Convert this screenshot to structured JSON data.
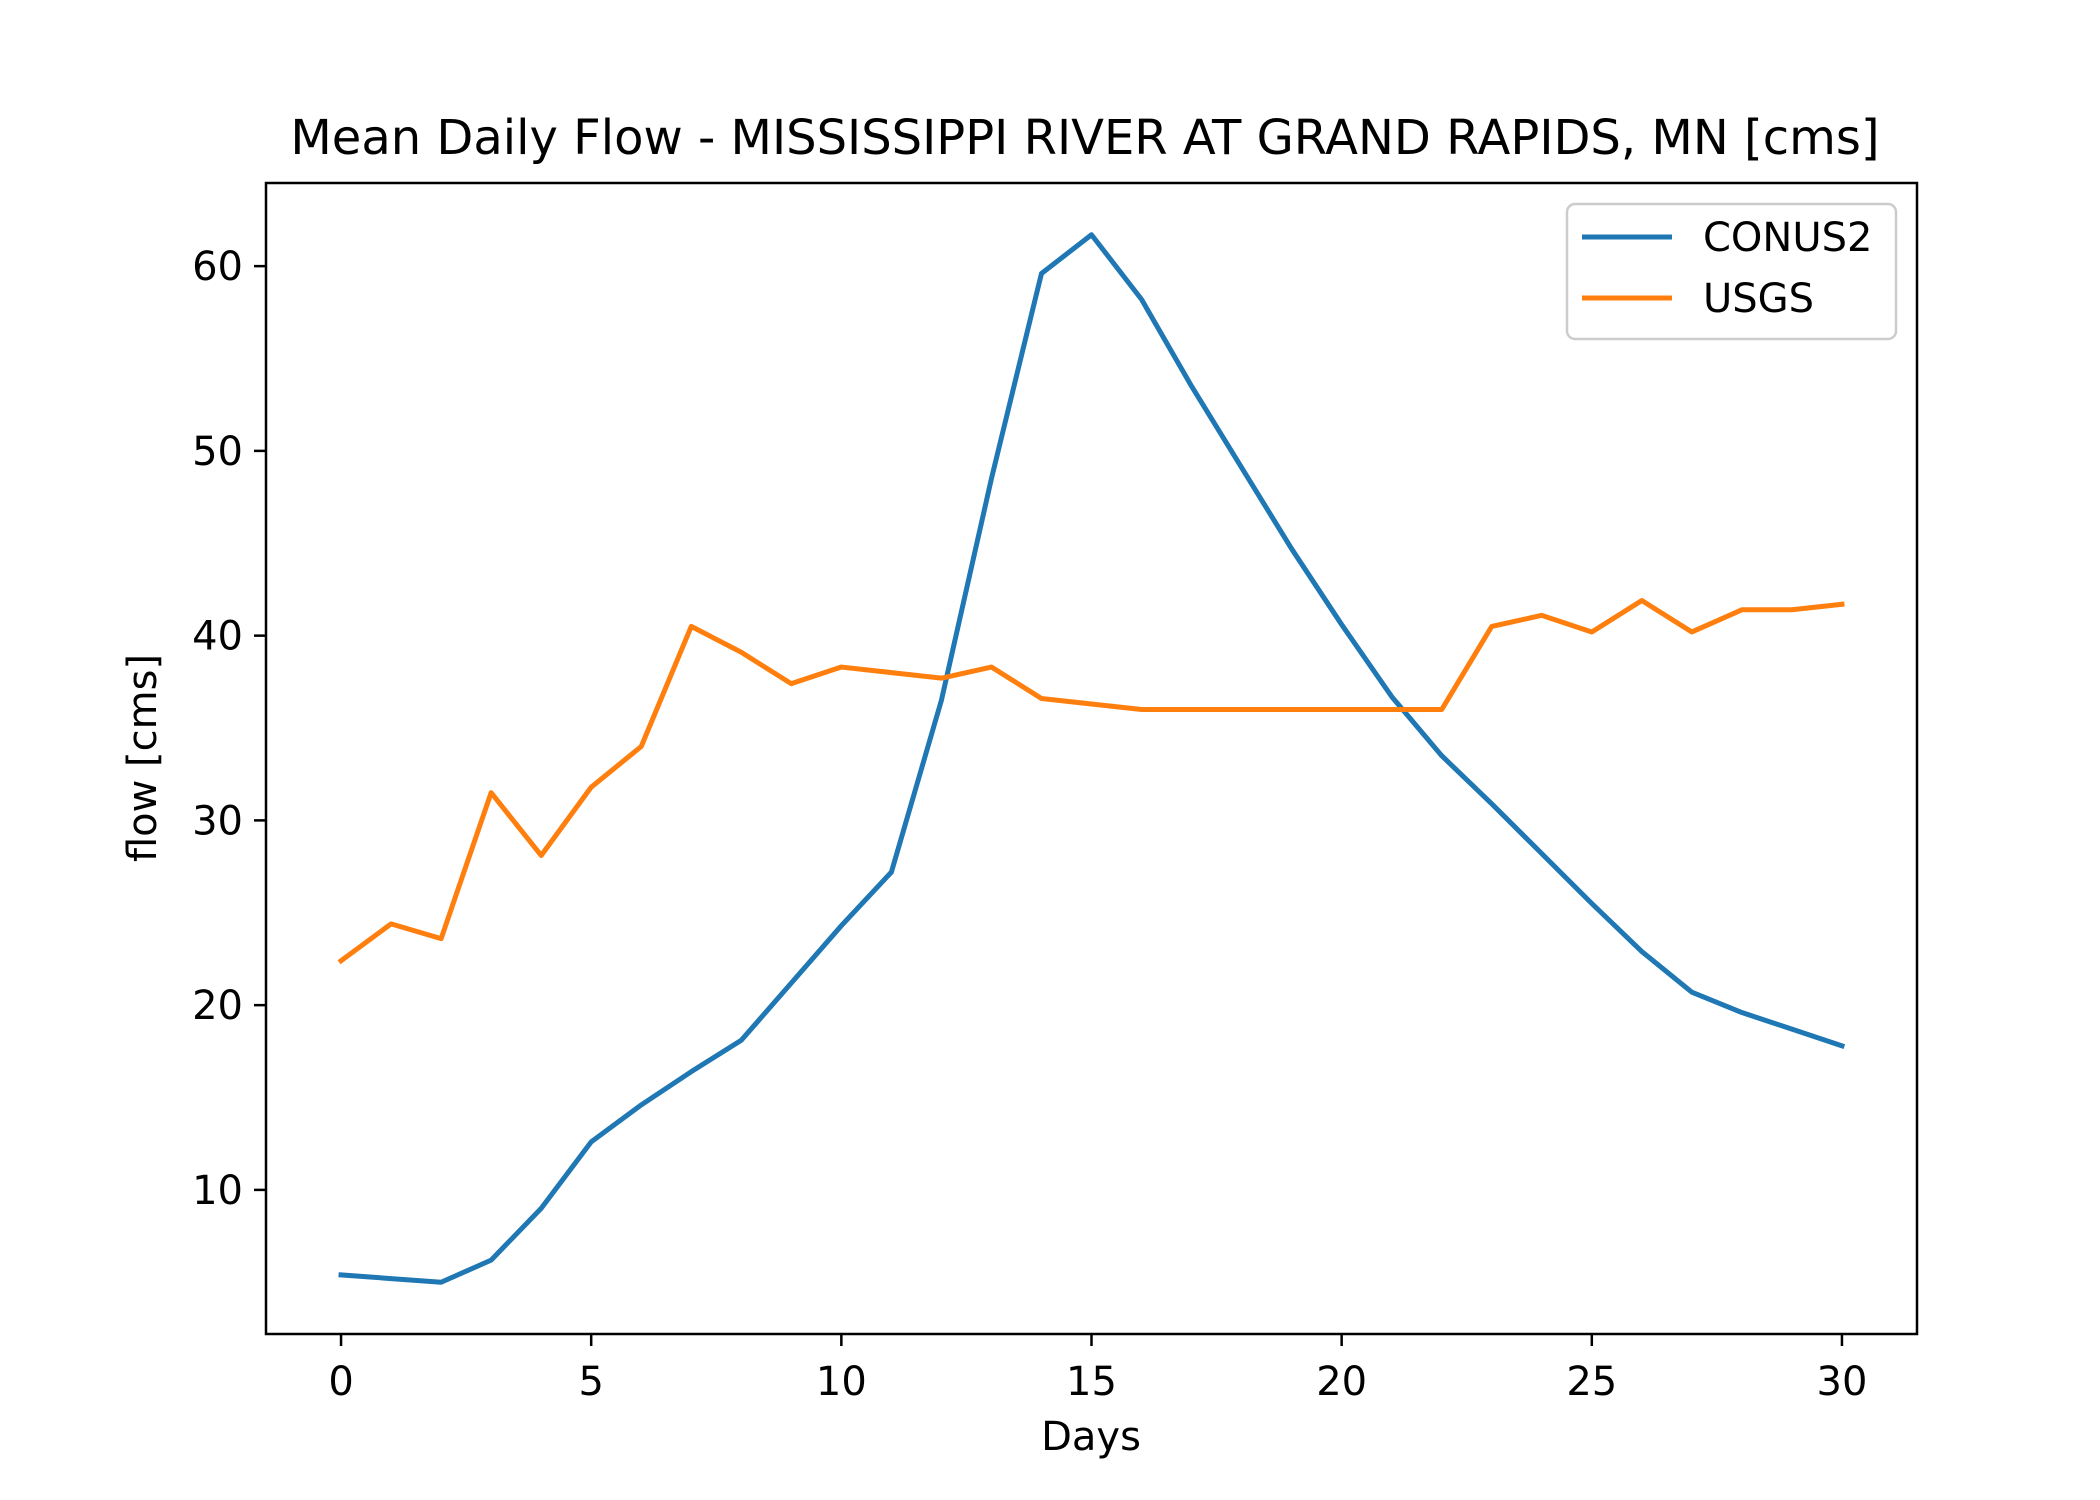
{
  "chart_data": {
    "type": "line",
    "title": "Mean Daily Flow - MISSISSIPPI RIVER AT GRAND RAPIDS, MN [cms]",
    "xlabel": "Days",
    "ylabel": "flow [cms]",
    "xlim": [
      -1.5,
      31.5
    ],
    "ylim": [
      2.2,
      64.5
    ],
    "xticks": [
      0,
      5,
      10,
      15,
      20,
      25,
      30
    ],
    "yticks": [
      10,
      20,
      30,
      40,
      50,
      60
    ],
    "grid": false,
    "legend_position": "top-right",
    "x": [
      0,
      1,
      2,
      3,
      4,
      5,
      6,
      7,
      8,
      9,
      10,
      11,
      12,
      13,
      14,
      15,
      16,
      17,
      18,
      19,
      20,
      21,
      22,
      23,
      24,
      25,
      26,
      27,
      28,
      29,
      30
    ],
    "series": [
      {
        "name": "CONUS2",
        "color": "#1f77b4",
        "values": [
          5.4,
          5.2,
          5.0,
          6.2,
          9.0,
          12.6,
          14.6,
          16.4,
          18.1,
          21.2,
          24.3,
          27.2,
          36.5,
          48.5,
          59.6,
          61.7,
          58.2,
          53.5,
          49.1,
          44.7,
          40.6,
          36.7,
          33.5,
          30.9,
          28.2,
          25.5,
          22.9,
          20.7,
          19.6,
          18.7,
          17.8
        ]
      },
      {
        "name": "USGS",
        "color": "#ff7f0e",
        "values": [
          22.4,
          24.4,
          23.6,
          31.5,
          28.1,
          31.8,
          34.0,
          40.5,
          39.1,
          37.4,
          38.3,
          38.0,
          37.7,
          38.3,
          36.6,
          36.3,
          36.0,
          36.0,
          36.0,
          36.0,
          36.0,
          36.0,
          36.0,
          40.5,
          41.1,
          40.2,
          41.9,
          40.2,
          41.4,
          41.4,
          41.7
        ]
      }
    ]
  }
}
